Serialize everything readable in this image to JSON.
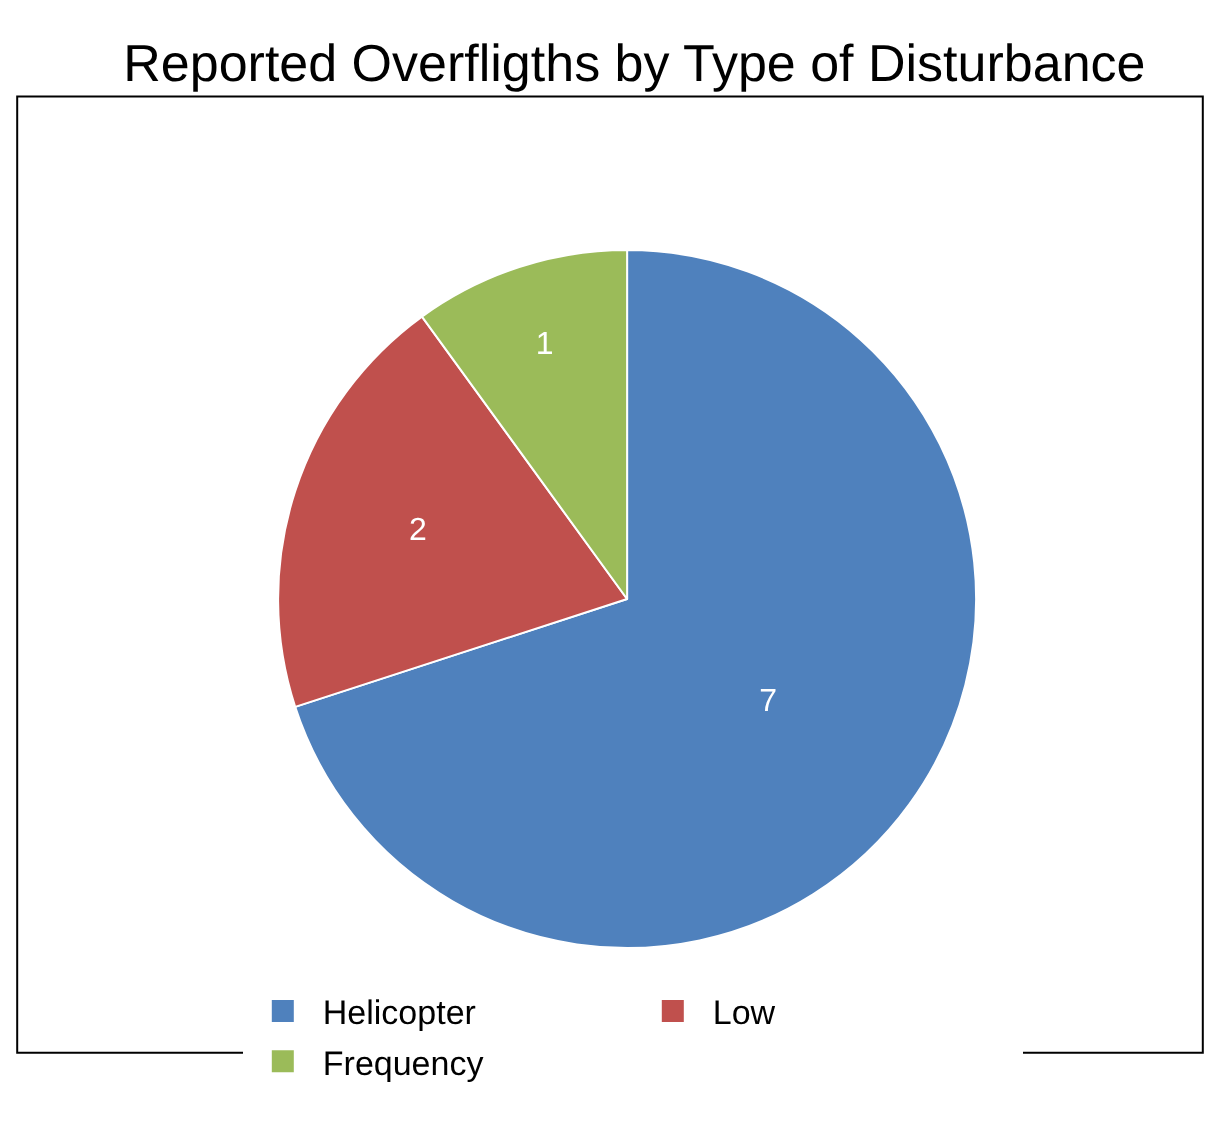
{
  "chart_data": {
    "type": "pie",
    "title": "Reported Overfligths by Type of Disturbance",
    "categories": [
      "Helicopter",
      "Low",
      "Frequency"
    ],
    "values": [
      7,
      2,
      1
    ],
    "colors": [
      "#4f81bd",
      "#c0504d",
      "#9bbb59"
    ],
    "data_labels": true,
    "legend": "bottom"
  }
}
